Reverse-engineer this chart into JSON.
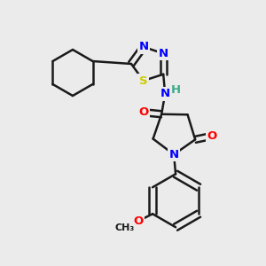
{
  "background_color": "#ebebeb",
  "bond_color": "#1a1a1a",
  "bond_width": 1.8,
  "atom_colors": {
    "N": "#0000ff",
    "S": "#cccc00",
    "O": "#ff0000",
    "C": "#1a1a1a",
    "H": "#3aaa8a"
  },
  "font_size": 9.5
}
